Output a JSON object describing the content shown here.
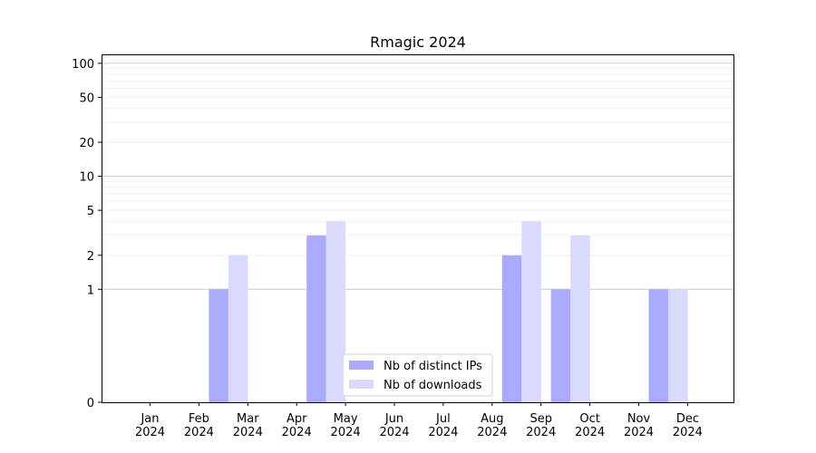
{
  "chart_data": {
    "type": "bar",
    "title": "Rmagic 2024",
    "xlabel": "",
    "ylabel": "",
    "categories": [
      [
        "Jan",
        "2024"
      ],
      [
        "Feb",
        "2024"
      ],
      [
        "Mar",
        "2024"
      ],
      [
        "Apr",
        "2024"
      ],
      [
        "May",
        "2024"
      ],
      [
        "Jun",
        "2024"
      ],
      [
        "Jul",
        "2024"
      ],
      [
        "Aug",
        "2024"
      ],
      [
        "Sep",
        "2024"
      ],
      [
        "Oct",
        "2024"
      ],
      [
        "Nov",
        "2024"
      ],
      [
        "Dec",
        "2024"
      ]
    ],
    "series": [
      {
        "name": "Nb of distinct IPs",
        "color": "#aaaaff",
        "values": [
          0,
          1,
          0,
          3,
          0,
          0,
          0,
          2,
          1,
          0,
          1,
          0
        ]
      },
      {
        "name": "Nb of downloads",
        "color": "#dadaff",
        "values": [
          0,
          2,
          0,
          4,
          0,
          0,
          0,
          4,
          3,
          0,
          1,
          0
        ]
      }
    ],
    "y_scale": "symlog",
    "ylim": [
      0,
      120
    ],
    "y_ticks": [
      0,
      1,
      2,
      5,
      10,
      20,
      50,
      100
    ],
    "major_grid": [
      1,
      10,
      100
    ],
    "minor_grid": [
      2,
      3,
      4,
      5,
      6,
      7,
      8,
      9,
      20,
      30,
      40,
      50,
      60,
      70,
      80,
      90
    ],
    "grid": true,
    "legend_position": "lower-center"
  }
}
